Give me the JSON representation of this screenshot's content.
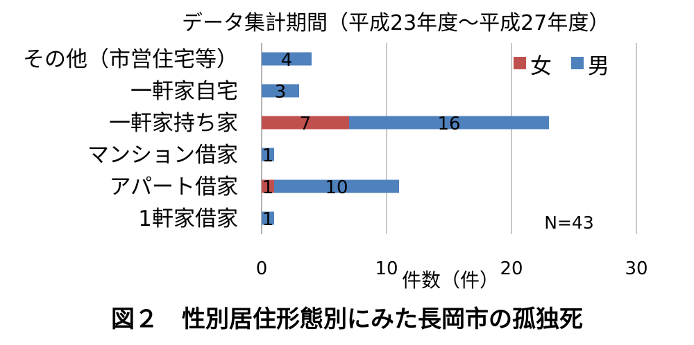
{
  "subtitle": "データ集計期間（平成23年度～平成27年度）",
  "caption": "図２　性別居住形態別にみた長岡市の孤独死",
  "chart_data": {
    "type": "bar",
    "orientation": "horizontal",
    "stacked": true,
    "categories": [
      "その他（市営住宅等）",
      "一軒家自宅",
      "一軒家持ち家",
      "マンション借家",
      "アパート借家",
      "1軒家借家"
    ],
    "series": [
      {
        "name": "女",
        "color": "#c0504d",
        "values": [
          0,
          0,
          7,
          0,
          1,
          0
        ]
      },
      {
        "name": "男",
        "color": "#4f81bd",
        "values": [
          4,
          3,
          16,
          1,
          10,
          1
        ]
      }
    ],
    "xlabel": "件数（件）",
    "ylabel": "",
    "xlim": [
      0,
      30
    ],
    "xticks": [
      0,
      10,
      20,
      30
    ],
    "grid": true,
    "legend": "top-right",
    "annotation": "N=43"
  }
}
